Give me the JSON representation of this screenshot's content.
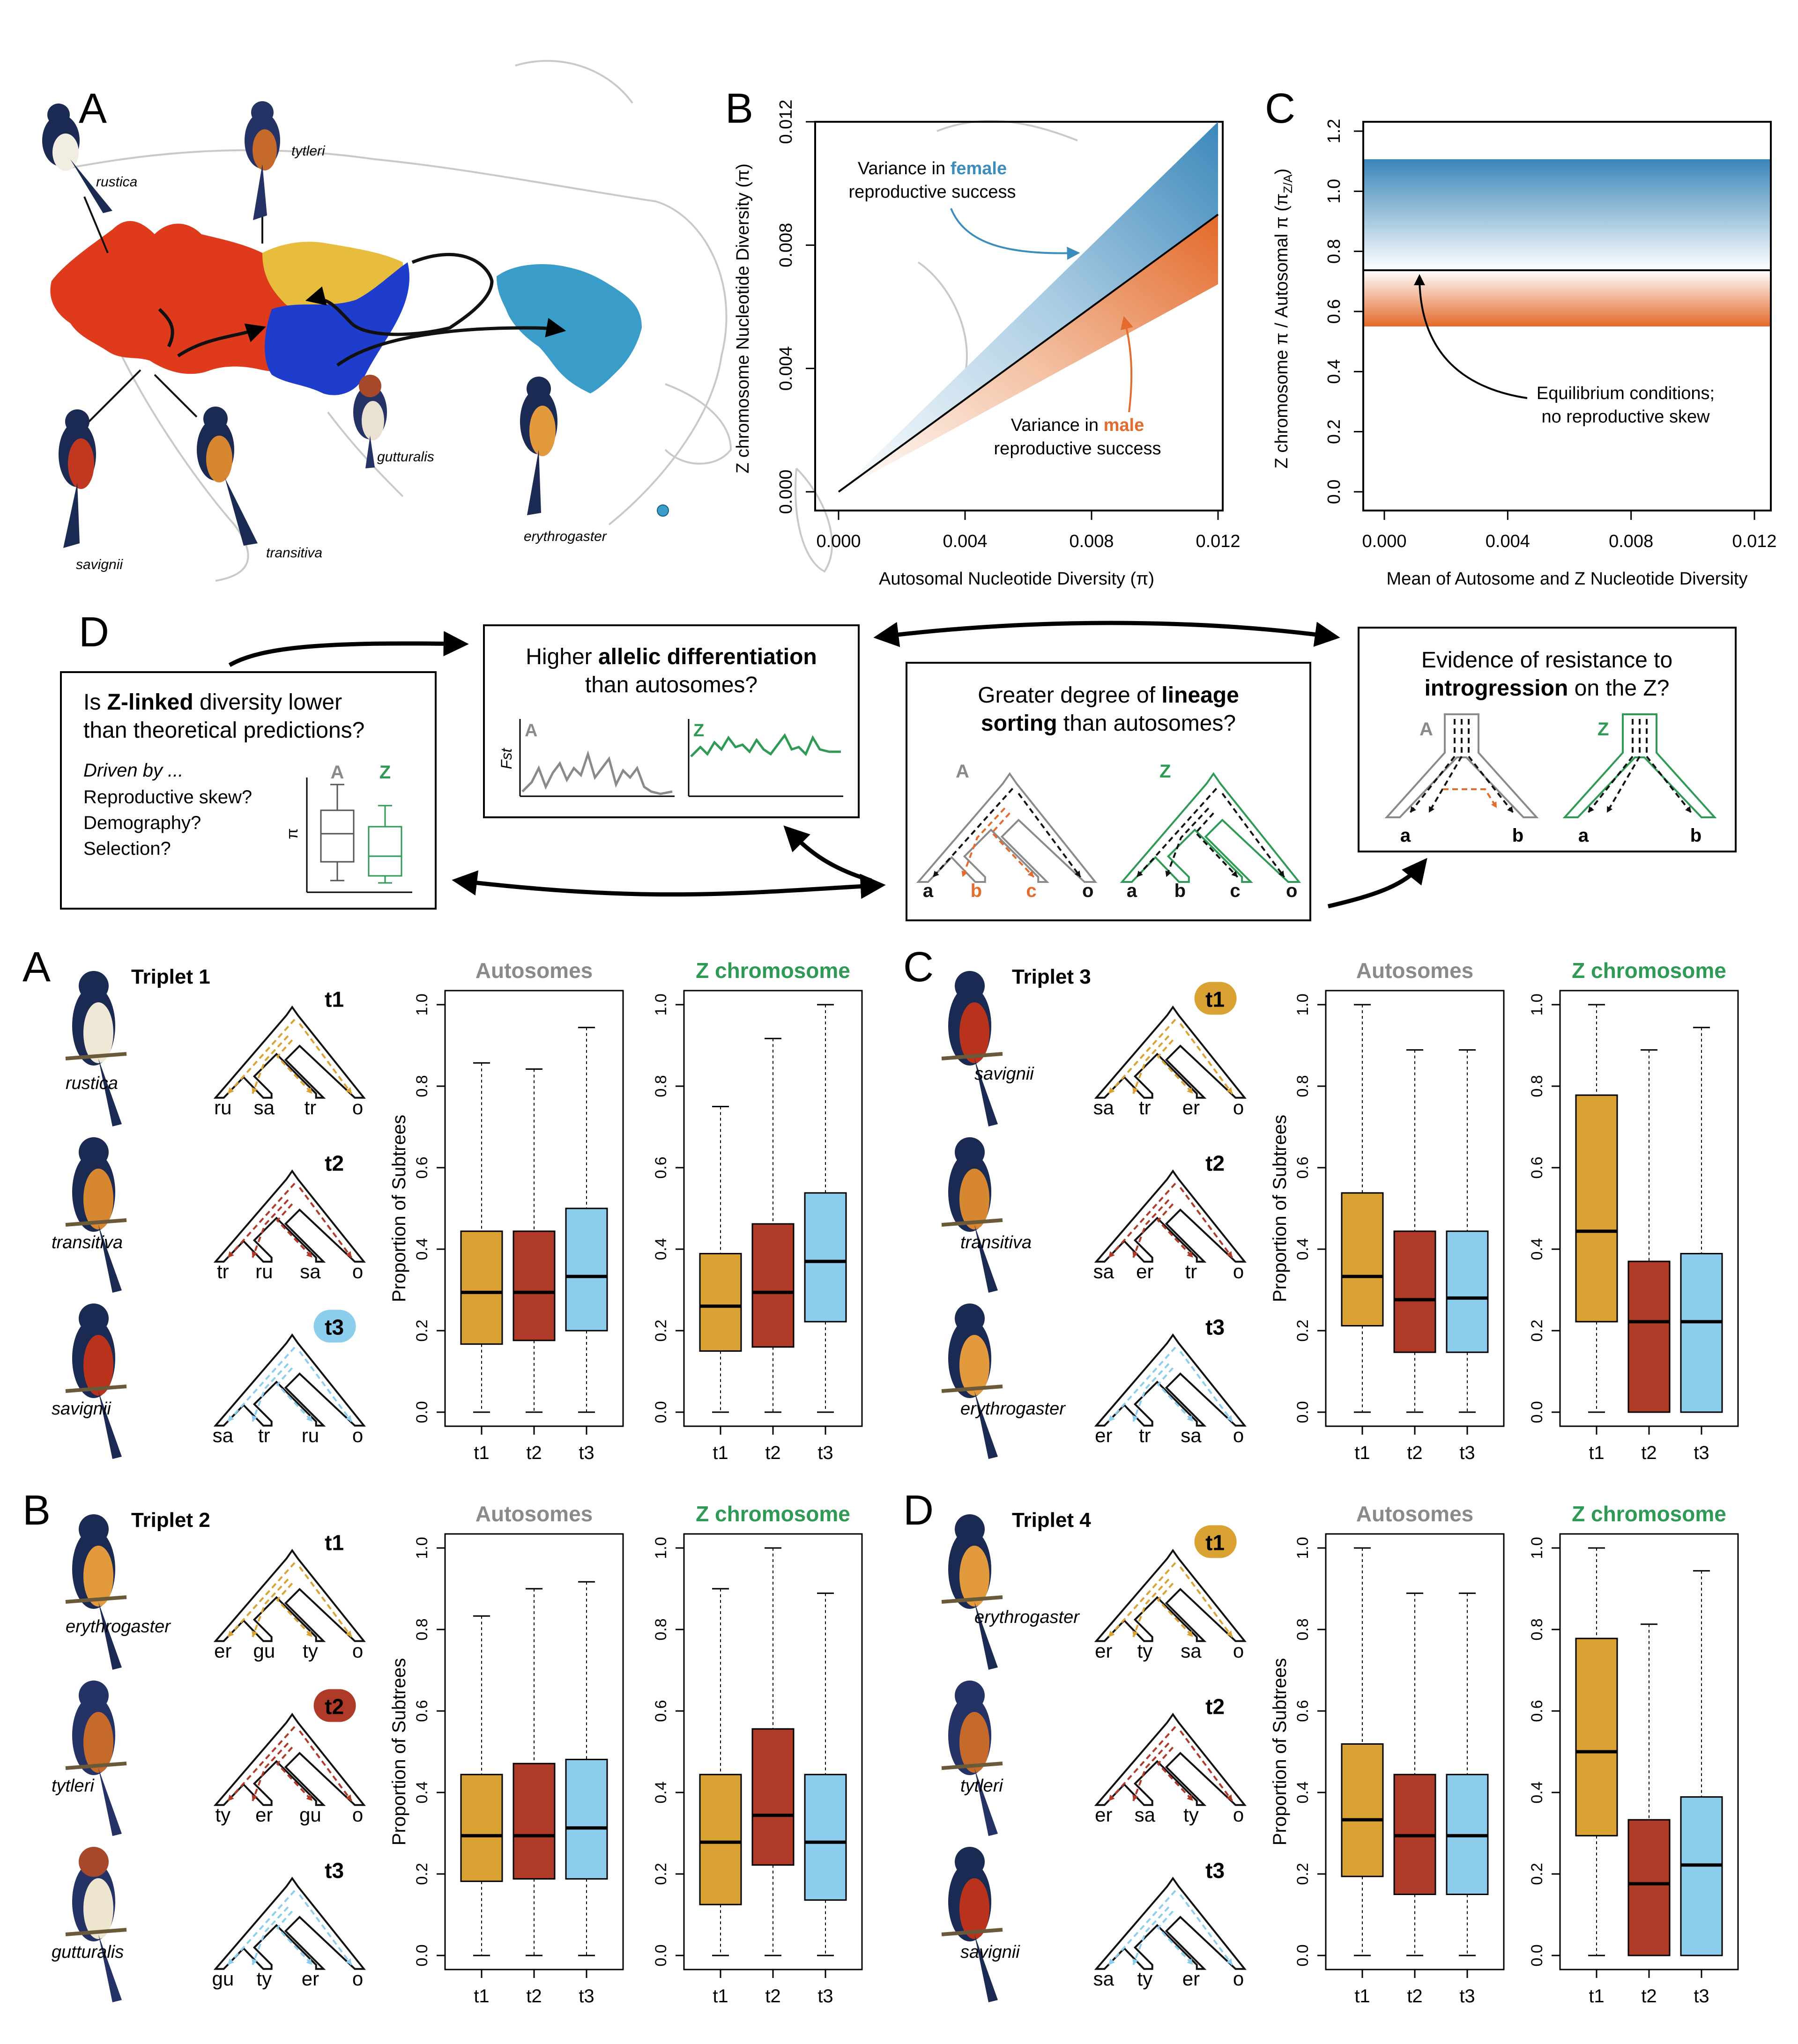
{
  "top": {
    "A": {
      "letter": "A",
      "birds": [
        "rustica",
        "tytleri",
        "savignii",
        "transitiva",
        "gutturalis",
        "erythrogaster"
      ]
    },
    "B": {
      "letter": "B",
      "ylabel": "Z chromosome Nucleotide Diversity (π)",
      "xlabel": "Autosomal Nucleotide Diversity (π)",
      "yticks": [
        "0.000",
        "0.004",
        "0.008",
        "0.012"
      ],
      "xticks": [
        "0.000",
        "0.004",
        "0.008",
        "0.012"
      ],
      "female_prefix": "Variance in ",
      "female_word": "female",
      "female_line2": "reproductive success",
      "male_prefix": "Variance in ",
      "male_word": "male",
      "male_line2": "reproductive success"
    },
    "C": {
      "letter": "C",
      "ylabel": "Z chromosome π / Autosomal π (π",
      "ylabel_sub": "Z/A",
      "ylabel_end": ")",
      "xlabel": "Mean of Autosome and Z Nucleotide Diversity",
      "yticks": [
        "0.0",
        "0.2",
        "0.4",
        "0.6",
        "0.8",
        "1.0",
        "1.2"
      ],
      "xticks": [
        "0.000",
        "0.004",
        "0.008",
        "0.012"
      ],
      "eq_line1": "Equilibrium conditions;",
      "eq_line2": "no reproductive skew"
    }
  },
  "D": {
    "letter": "D",
    "box1": {
      "l1a": "Is ",
      "l1b": "Z-linked",
      "l1c": " diversity lower",
      "l2": "than theoretical predictions?",
      "l3": "Driven by ...",
      "l4": "Reproductive skew?",
      "l5": "Demography?",
      "l6": "Selection?",
      "A": "A",
      "Z": "Z",
      "pi": "π"
    },
    "box2": {
      "l1a": "Higher ",
      "l1b": "allelic differentiation",
      "l2": "than autosomes?",
      "fst": "Fst",
      "A": "A",
      "Z": "Z"
    },
    "box3": {
      "l1a": "Greater degree of ",
      "l1b": "lineage",
      "l2a": "sorting",
      "l2b": " than autosomes?",
      "A": "A",
      "Z": "Z",
      "tips": [
        "a",
        "b",
        "c",
        "o"
      ]
    },
    "box4": {
      "l1": "Evidence of resistance to",
      "l2a": "introgression",
      "l2b": " on the Z?",
      "A": "A",
      "Z": "Z",
      "tips": [
        "a",
        "b"
      ]
    }
  },
  "triplets": [
    {
      "letter": "A",
      "title": "Triplet 1",
      "birds": [
        "rustica",
        "transitiva",
        "savignii"
      ],
      "highlight": 3,
      "trees": [
        {
          "label": "t1",
          "tips": [
            "ru",
            "sa",
            "tr",
            "o"
          ]
        },
        {
          "label": "t2",
          "tips": [
            "tr",
            "ru",
            "sa",
            "o"
          ]
        },
        {
          "label": "t3",
          "tips": [
            "sa",
            "tr",
            "ru",
            "o"
          ]
        }
      ]
    },
    {
      "letter": "B",
      "title": "Triplet 2",
      "birds": [
        "erythrogaster",
        "tytleri",
        "gutturalis"
      ],
      "highlight": 2,
      "trees": [
        {
          "label": "t1",
          "tips": [
            "er",
            "gu",
            "ty",
            "o"
          ]
        },
        {
          "label": "t2",
          "tips": [
            "ty",
            "er",
            "gu",
            "o"
          ]
        },
        {
          "label": "t3",
          "tips": [
            "gu",
            "ty",
            "er",
            "o"
          ]
        }
      ]
    },
    {
      "letter": "C",
      "title": "Triplet 3",
      "birds": [
        "savignii",
        "transitiva",
        "erythrogaster"
      ],
      "highlight": 1,
      "trees": [
        {
          "label": "t1",
          "tips": [
            "sa",
            "tr",
            "er",
            "o"
          ]
        },
        {
          "label": "t2",
          "tips": [
            "sa",
            "er",
            "tr",
            "o"
          ]
        },
        {
          "label": "t3",
          "tips": [
            "er",
            "tr",
            "sa",
            "o"
          ]
        }
      ]
    },
    {
      "letter": "D",
      "title": "Triplet 4",
      "birds": [
        "erythrogaster",
        "tytleri",
        "savignii"
      ],
      "highlight": 1,
      "trees": [
        {
          "label": "t1",
          "tips": [
            "er",
            "ty",
            "sa",
            "o"
          ]
        },
        {
          "label": "t2",
          "tips": [
            "er",
            "sa",
            "ty",
            "o"
          ]
        },
        {
          "label": "t3",
          "tips": [
            "sa",
            "ty",
            "er",
            "o"
          ]
        }
      ]
    }
  ],
  "boxplot_labels": {
    "autosomes": "Autosomes",
    "zchrom": "Z chromosome",
    "ylabel": "Proportion of Subtrees",
    "yticks": [
      "0.0",
      "0.2",
      "0.4",
      "0.6",
      "0.8",
      "1.0"
    ],
    "xticks": [
      "t1",
      "t2",
      "t3"
    ]
  },
  "colors": {
    "t1": "#D9A233",
    "t2": "#B03A28",
    "t3": "#8CCDED",
    "female": "#3D8CBE",
    "male": "#E46A2E",
    "z_green": "#2E9A55",
    "autosome_grey": "#8a8a8a",
    "europe_red": "#E03A1C",
    "asia_yellow": "#E8BC3C",
    "asia_blue": "#1F3DCC",
    "america_blue": "#3A9CC8"
  },
  "chart_data": [
    {
      "type": "area",
      "panel": "B",
      "xlabel": "Autosomal Nucleotide Diversity (π)",
      "ylabel": "Z chromosome Nucleotide Diversity (π)",
      "xlim": [
        0,
        0.0125
      ],
      "ylim": [
        0,
        0.0125
      ],
      "series": [
        {
          "name": "female",
          "upper_slope": 1.125,
          "lower_slope": 0.75
        },
        {
          "name": "male",
          "upper_slope": 0.75,
          "lower_slope": 0.5625
        }
      ],
      "line_slope": 0.75,
      "grid": false
    },
    {
      "type": "area",
      "panel": "C",
      "xlabel": "Mean of Autosome and Z Nucleotide Diversity",
      "ylabel": "Z chromosome π / Autosomal π (πZ/A)",
      "xlim": [
        0,
        0.0125
      ],
      "ylim": [
        0,
        1.25
      ],
      "bands": [
        {
          "name": "female",
          "from": 0.75,
          "to": 1.125
        },
        {
          "name": "male",
          "from": 0.5625,
          "to": 0.75
        }
      ],
      "line_y": 0.75,
      "grid": false
    },
    {
      "type": "box",
      "panel": "Triplet 1",
      "chrom": "Autosomes",
      "categories": [
        "t1",
        "t2",
        "t3"
      ],
      "stats": [
        {
          "min": 0,
          "q1": 0.167,
          "median": 0.294,
          "q3": 0.444,
          "max": 0.857
        },
        {
          "min": 0,
          "q1": 0.176,
          "median": 0.294,
          "q3": 0.444,
          "max": 0.842
        },
        {
          "min": 0,
          "q1": 0.2,
          "median": 0.333,
          "q3": 0.5,
          "max": 0.944
        }
      ]
    },
    {
      "type": "box",
      "panel": "Triplet 1",
      "chrom": "Z chromosome",
      "categories": [
        "t1",
        "t2",
        "t3"
      ],
      "stats": [
        {
          "min": 0,
          "q1": 0.15,
          "median": 0.26,
          "q3": 0.389,
          "max": 0.75
        },
        {
          "min": 0,
          "q1": 0.16,
          "median": 0.294,
          "q3": 0.462,
          "max": 0.917
        },
        {
          "min": 0,
          "q1": 0.222,
          "median": 0.37,
          "q3": 0.538,
          "max": 1.0
        }
      ]
    },
    {
      "type": "box",
      "panel": "Triplet 2",
      "chrom": "Autosomes",
      "categories": [
        "t1",
        "t2",
        "t3"
      ],
      "stats": [
        {
          "min": 0,
          "q1": 0.182,
          "median": 0.294,
          "q3": 0.444,
          "max": 0.833
        },
        {
          "min": 0,
          "q1": 0.188,
          "median": 0.294,
          "q3": 0.471,
          "max": 0.9
        },
        {
          "min": 0,
          "q1": 0.188,
          "median": 0.313,
          "q3": 0.481,
          "max": 0.917
        }
      ]
    },
    {
      "type": "box",
      "panel": "Triplet 2",
      "chrom": "Z chromosome",
      "categories": [
        "t1",
        "t2",
        "t3"
      ],
      "stats": [
        {
          "min": 0,
          "q1": 0.125,
          "median": 0.278,
          "q3": 0.444,
          "max": 0.9
        },
        {
          "min": 0,
          "q1": 0.222,
          "median": 0.344,
          "q3": 0.556,
          "max": 1.0
        },
        {
          "min": 0,
          "q1": 0.136,
          "median": 0.278,
          "q3": 0.444,
          "max": 0.889
        }
      ]
    },
    {
      "type": "box",
      "panel": "Triplet 3",
      "chrom": "Autosomes",
      "categories": [
        "t1",
        "t2",
        "t3"
      ],
      "stats": [
        {
          "min": 0,
          "q1": 0.212,
          "median": 0.333,
          "q3": 0.538,
          "max": 1.0
        },
        {
          "min": 0,
          "q1": 0.147,
          "median": 0.276,
          "q3": 0.444,
          "max": 0.889
        },
        {
          "min": 0,
          "q1": 0.147,
          "median": 0.28,
          "q3": 0.444,
          "max": 0.889
        }
      ]
    },
    {
      "type": "box",
      "panel": "Triplet 3",
      "chrom": "Z chromosome",
      "categories": [
        "t1",
        "t2",
        "t3"
      ],
      "stats": [
        {
          "min": 0,
          "q1": 0.222,
          "median": 0.444,
          "q3": 0.778,
          "max": 1.0
        },
        {
          "min": 0,
          "q1": 0.0,
          "median": 0.222,
          "q3": 0.37,
          "max": 0.889
        },
        {
          "min": 0,
          "q1": 0.0,
          "median": 0.222,
          "q3": 0.389,
          "max": 0.944
        }
      ]
    },
    {
      "type": "box",
      "panel": "Triplet 4",
      "chrom": "Autosomes",
      "categories": [
        "t1",
        "t2",
        "t3"
      ],
      "stats": [
        {
          "min": 0,
          "q1": 0.194,
          "median": 0.333,
          "q3": 0.519,
          "max": 1.0
        },
        {
          "min": 0,
          "q1": 0.15,
          "median": 0.294,
          "q3": 0.444,
          "max": 0.889
        },
        {
          "min": 0,
          "q1": 0.15,
          "median": 0.294,
          "q3": 0.444,
          "max": 0.889
        }
      ]
    },
    {
      "type": "box",
      "panel": "Triplet 4",
      "chrom": "Z chromosome",
      "categories": [
        "t1",
        "t2",
        "t3"
      ],
      "stats": [
        {
          "min": 0,
          "q1": 0.294,
          "median": 0.5,
          "q3": 0.778,
          "max": 1.0
        },
        {
          "min": 0,
          "q1": 0.0,
          "median": 0.176,
          "q3": 0.333,
          "max": 0.813
        },
        {
          "min": 0,
          "q1": 0.0,
          "median": 0.222,
          "q3": 0.389,
          "max": 0.944
        }
      ]
    }
  ]
}
